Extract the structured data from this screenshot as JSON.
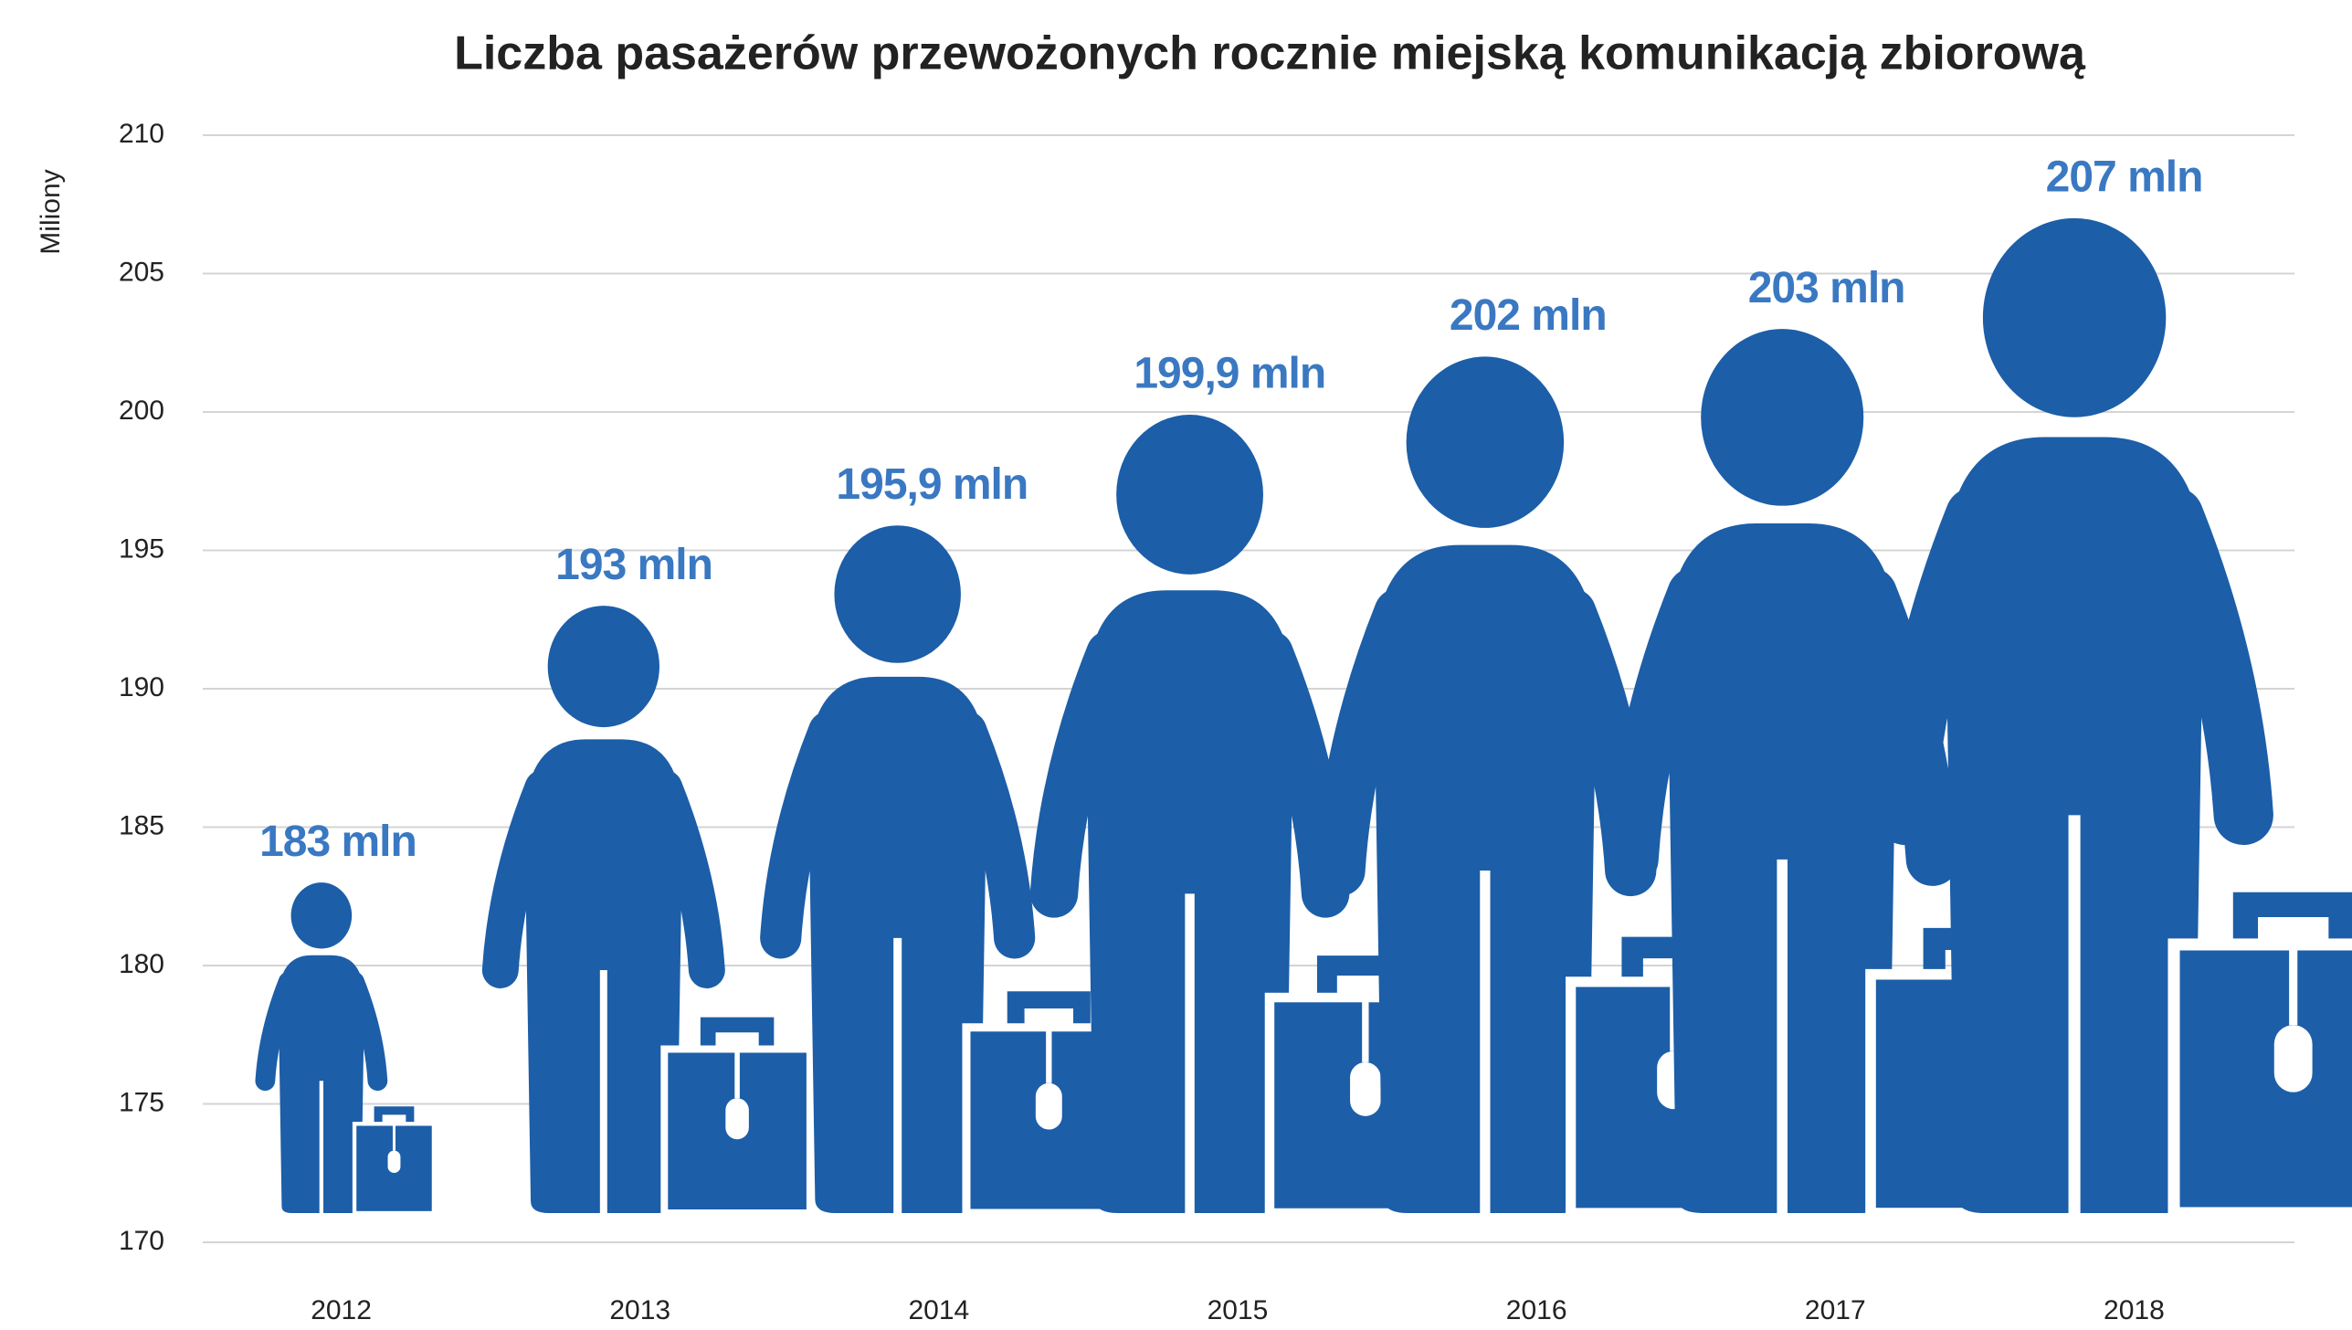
{
  "chart_data": {
    "type": "pictograph",
    "title": "Liczba pasażerów przewożonych rocznie miejską komunikacją zbiorową",
    "y_label": "Miliony",
    "categories": [
      "2012",
      "2013",
      "2014",
      "2015",
      "2016",
      "2017",
      "2018"
    ],
    "values": [
      183,
      193,
      195.9,
      199.9,
      202,
      203,
      207
    ],
    "value_labels": [
      "183 mln",
      "193 mln",
      "195,9 mln",
      "199,9 mln",
      "202 mln",
      "203 mln",
      "207 mln"
    ],
    "color": "#1c5ea8",
    "ylim": [
      170,
      210
    ],
    "yticks": [
      170,
      175,
      180,
      185,
      190,
      195,
      200,
      205,
      210
    ],
    "grid": true
  }
}
